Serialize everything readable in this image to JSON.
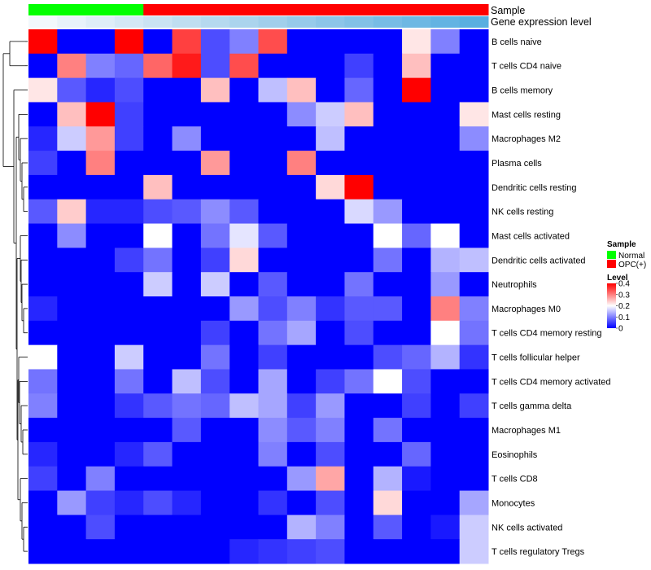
{
  "chart_data": {
    "type": "heatmap",
    "annotations": {
      "sample_label": "Sample",
      "gene_label": "Gene expression level",
      "sample_groups": [
        "Normal",
        "Normal",
        "Normal",
        "Normal",
        "OPC(+)",
        "OPC(+)",
        "OPC(+)",
        "OPC(+)",
        "OPC(+)",
        "OPC(+)",
        "OPC(+)",
        "OPC(+)",
        "OPC(+)",
        "OPC(+)",
        "OPC(+)",
        "OPC(+)"
      ],
      "gene_level_colors": [
        "#f2f8fc",
        "#e8f2fa",
        "#deedf7",
        "#d4e8f5",
        "#cae3f3",
        "#bfdef1",
        "#b5d9ef",
        "#abd4ed",
        "#a1cfeb",
        "#96caea",
        "#8cc5e8",
        "#82c1e6",
        "#77bce5",
        "#6db8e3",
        "#63b3e2",
        "#59afe0"
      ]
    },
    "rows": [
      "B cells naive",
      "T cells CD4 naive",
      "B cells memory",
      "Mast cells resting",
      "Macrophages M2",
      "Plasma cells",
      "Dendritic cells resting",
      "NK cells resting",
      "Mast cells activated",
      "Dendritic cells activated",
      "Neutrophils",
      "Macrophages M0",
      "T cells CD4 memory resting",
      "T cells follicular helper",
      "T cells CD4 memory activated",
      "T cells gamma delta",
      "Macrophages M1",
      "Eosinophils",
      "T cells CD8",
      "Monocytes",
      "NK cells activated",
      "T cells regulatory  Tregs"
    ],
    "values": [
      [
        0.4,
        0.0,
        0.0,
        0.4,
        0.0,
        0.35,
        0.06,
        0.1,
        0.34,
        0.0,
        0.0,
        0.0,
        0.0,
        0.22,
        0.1,
        0.0
      ],
      [
        0.0,
        0.3,
        0.1,
        0.08,
        0.32,
        0.38,
        0.06,
        0.34,
        0.0,
        0.0,
        0.0,
        0.05,
        0.0,
        0.25,
        0.0,
        0.0
      ],
      [
        0.22,
        0.07,
        0.03,
        0.06,
        0.0,
        0.0,
        0.25,
        0.0,
        0.15,
        0.25,
        0.0,
        0.08,
        0.0,
        0.4,
        0.0,
        0.0
      ],
      [
        0.0,
        0.25,
        0.4,
        0.05,
        0.0,
        0.0,
        0.0,
        0.0,
        0.0,
        0.11,
        0.16,
        0.25,
        0.0,
        0.0,
        0.0,
        0.22
      ],
      [
        0.03,
        0.16,
        0.28,
        0.05,
        0.0,
        0.11,
        0.0,
        0.0,
        0.0,
        0.0,
        0.15,
        0.0,
        0.0,
        0.0,
        0.0,
        0.11
      ],
      [
        0.05,
        0.0,
        0.3,
        0.0,
        0.0,
        0.0,
        0.28,
        0.0,
        0.0,
        0.3,
        0.0,
        0.0,
        0.0,
        0.0,
        0.0,
        0.0
      ],
      [
        0.0,
        0.0,
        0.0,
        0.0,
        0.25,
        0.0,
        0.0,
        0.0,
        0.0,
        0.0,
        0.23,
        0.4,
        0.0,
        0.0,
        0.0,
        0.0
      ],
      [
        0.07,
        0.24,
        0.03,
        0.03,
        0.06,
        0.07,
        0.11,
        0.07,
        0.0,
        0.0,
        0.0,
        0.17,
        0.12,
        0.0,
        0.0,
        0.0
      ],
      [
        0.0,
        0.11,
        0.0,
        0.0,
        0.2,
        0.0,
        0.09,
        0.18,
        0.07,
        0.0,
        0.0,
        0.0,
        0.2,
        0.08,
        0.2,
        0.0
      ],
      [
        0.0,
        0.0,
        0.0,
        0.05,
        0.09,
        0.0,
        0.05,
        0.23,
        0.0,
        0.0,
        0.0,
        0.0,
        0.09,
        0.0,
        0.14,
        0.15
      ],
      [
        0.0,
        0.0,
        0.0,
        0.0,
        0.16,
        0.0,
        0.16,
        0.0,
        0.07,
        0.0,
        0.0,
        0.09,
        0.0,
        0.0,
        0.12,
        0.0
      ],
      [
        0.03,
        0.0,
        0.0,
        0.0,
        0.0,
        0.0,
        0.0,
        0.12,
        0.06,
        0.1,
        0.04,
        0.07,
        0.07,
        0.0,
        0.3,
        0.1
      ],
      [
        0.0,
        0.0,
        0.0,
        0.0,
        0.0,
        0.0,
        0.05,
        0.0,
        0.09,
        0.13,
        0.0,
        0.06,
        0.0,
        0.0,
        0.2,
        0.09
      ],
      [
        0.2,
        0.0,
        0.0,
        0.16,
        0.0,
        0.0,
        0.09,
        0.0,
        0.05,
        0.0,
        0.0,
        0.0,
        0.06,
        0.08,
        0.14,
        0.04
      ],
      [
        0.09,
        0.0,
        0.0,
        0.09,
        0.0,
        0.15,
        0.06,
        0.0,
        0.13,
        0.0,
        0.05,
        0.09,
        0.2,
        0.06,
        0.0,
        0.0
      ],
      [
        0.1,
        0.0,
        0.0,
        0.04,
        0.07,
        0.09,
        0.08,
        0.15,
        0.13,
        0.05,
        0.12,
        0.0,
        0.0,
        0.05,
        0.0,
        0.05
      ],
      [
        0.0,
        0.0,
        0.0,
        0.0,
        0.0,
        0.07,
        0.0,
        0.0,
        0.11,
        0.07,
        0.1,
        0.0,
        0.09,
        0.0,
        0.0,
        0.0
      ],
      [
        0.03,
        0.0,
        0.0,
        0.03,
        0.07,
        0.0,
        0.0,
        0.0,
        0.1,
        0.0,
        0.06,
        0.0,
        0.0,
        0.08,
        0.0,
        0.0
      ],
      [
        0.05,
        0.0,
        0.1,
        0.0,
        0.0,
        0.0,
        0.0,
        0.0,
        0.0,
        0.12,
        0.27,
        0.0,
        0.14,
        0.02,
        0.0,
        0.0
      ],
      [
        0.0,
        0.12,
        0.05,
        0.03,
        0.06,
        0.03,
        0.0,
        0.0,
        0.04,
        0.0,
        0.06,
        0.0,
        0.23,
        0.0,
        0.0,
        0.13
      ],
      [
        0.0,
        0.0,
        0.06,
        0.0,
        0.0,
        0.0,
        0.0,
        0.0,
        0.0,
        0.14,
        0.1,
        0.0,
        0.07,
        0.0,
        0.02,
        0.16
      ],
      [
        0.0,
        0.0,
        0.0,
        0.0,
        0.0,
        0.0,
        0.0,
        0.03,
        0.04,
        0.05,
        0.06,
        0.0,
        0.0,
        0.0,
        0.0,
        0.16
      ]
    ],
    "scale": {
      "min": 0,
      "max": 0.4,
      "low_color": "#0000ff",
      "mid_color": "#ffffff",
      "high_color": "#ff0000"
    },
    "legend": {
      "sample_title": "Sample",
      "sample_items": [
        {
          "label": "Normal",
          "color": "#00ff00"
        },
        {
          "label": "OPC(+)",
          "color": "#ff0000"
        }
      ],
      "level_title": "Level",
      "level_ticks": [
        "0.4",
        "0.3",
        "0.2",
        "0.1",
        "0"
      ]
    },
    "legend_placement": "right"
  }
}
